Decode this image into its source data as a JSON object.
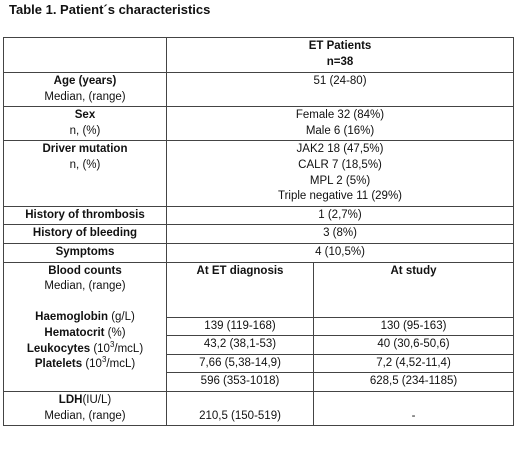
{
  "title": "Table 1. Patient´s characteristics",
  "header": {
    "line1": "ET Patients",
    "line2": "n=38"
  },
  "rows": {
    "age": {
      "label": "Age (years)",
      "sublabel": "Median, (range)",
      "value": "51 (24-80)"
    },
    "sex": {
      "label": "Sex",
      "sublabel": "n, (%)",
      "values": [
        "Female 32 (84%)",
        "Male 6 (16%)"
      ]
    },
    "driver": {
      "label": "Driver mutation",
      "sublabel": "n, (%)",
      "values": [
        "JAK2 18 (47,5%)",
        "CALR 7 (18,5%)",
        "MPL 2 (5%)",
        "Triple negative 11 (29%)"
      ]
    },
    "thrombosis": {
      "label": "History of thrombosis",
      "value": "1 (2,7%)"
    },
    "bleeding": {
      "label": "History of bleeding",
      "value": "3 (8%)"
    },
    "symptoms": {
      "label": "Symptoms",
      "value": "4 (10,5%)"
    }
  },
  "blood": {
    "label": "Blood counts",
    "sublabel": "Median, (range)",
    "col_diag": "At ET diagnosis",
    "col_study": "At study",
    "items": [
      {
        "name": "Haemoglobin",
        "unit_pre": " (g/L)",
        "sup": "",
        "unit_post": "",
        "diag": "139 (119-168)",
        "study": "130 (95-163)"
      },
      {
        "name": "Hematocrit",
        "unit_pre": " (%)",
        "sup": "",
        "unit_post": "",
        "diag": "43,2 (38,1-53)",
        "study": "40 (30,6-50,6)"
      },
      {
        "name": "Leukocytes",
        "unit_pre": " (10",
        "sup": "3",
        "unit_post": "/mcL)",
        "diag": "7,66 (5,38-14,9)",
        "study": "7,2 (4,52-11,4)"
      },
      {
        "name": "Platelets",
        "unit_pre": " (10",
        "sup": "3",
        "unit_post": "/mcL)",
        "diag": "596 (353-1018)",
        "study": "628,5 (234-1185)"
      }
    ]
  },
  "ldh": {
    "name": "LDH",
    "unit": "(IU/L)",
    "sublabel": "Median, (range)",
    "diag": "210,5 (150-519)",
    "study": "-"
  }
}
